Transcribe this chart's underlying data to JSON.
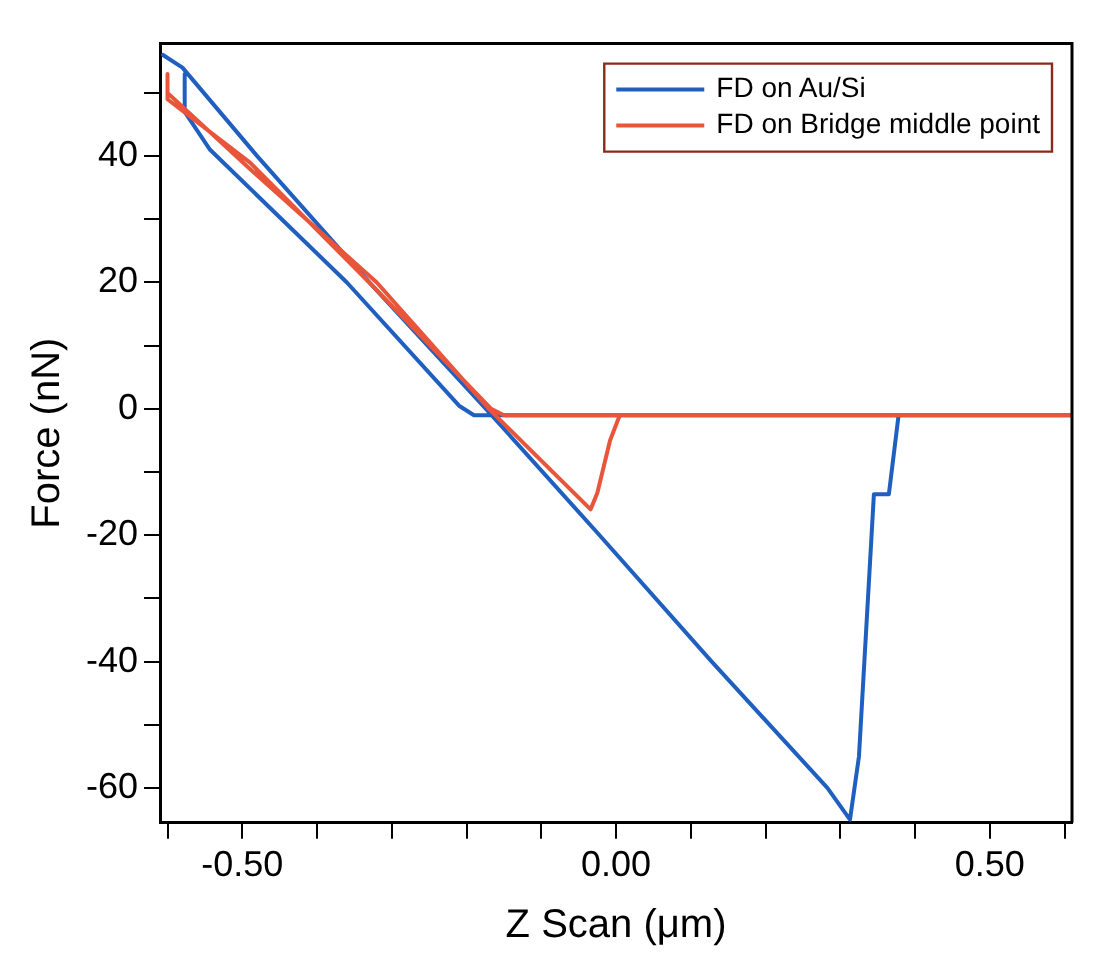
{
  "chart_data": {
    "type": "line",
    "xlabel": "Z Scan (μm)",
    "ylabel": "Force (nN)",
    "xlim": [
      -0.61,
      0.61
    ],
    "ylim": [
      -65.5,
      57.8
    ],
    "xticks": [
      {
        "value": -0.6,
        "label": null
      },
      {
        "value": -0.5,
        "label": "-0.50"
      },
      {
        "value": -0.4,
        "label": null
      },
      {
        "value": -0.3,
        "label": null
      },
      {
        "value": -0.2,
        "label": null
      },
      {
        "value": -0.1,
        "label": null
      },
      {
        "value": 0,
        "label": "0.00"
      },
      {
        "value": 0.1,
        "label": null
      },
      {
        "value": 0.2,
        "label": null
      },
      {
        "value": 0.3,
        "label": null
      },
      {
        "value": 0.4,
        "label": null
      },
      {
        "value": 0.5,
        "label": "0.50"
      },
      {
        "value": 0.6,
        "label": null
      }
    ],
    "yticks": [
      {
        "value": -60,
        "label": "-60"
      },
      {
        "value": -50,
        "label": null
      },
      {
        "value": -40,
        "label": "-40"
      },
      {
        "value": -30,
        "label": null
      },
      {
        "value": -20,
        "label": "-20"
      },
      {
        "value": -10,
        "label": null
      },
      {
        "value": 0,
        "label": "0"
      },
      {
        "value": 10,
        "label": null
      },
      {
        "value": 20,
        "label": "20"
      },
      {
        "value": 30,
        "label": null
      },
      {
        "value": 40,
        "label": "40"
      },
      {
        "value": 50,
        "label": null
      }
    ],
    "grid": false,
    "legend": "top right",
    "marker": "none",
    "line_style": "solid",
    "series": [
      {
        "name": "FD on Au/Si",
        "color": "#1f5fbf",
        "x": [
          -0.577,
          -0.577,
          -0.543,
          -0.36,
          -0.21,
          -0.19,
          0.61,
          0.378,
          0.365,
          0.345,
          0.325,
          0.313,
          0.283,
          0.128,
          -0.022,
          -0.174,
          -0.33,
          -0.48,
          -0.58,
          -0.606
        ],
        "values": [
          53,
          47,
          41,
          20,
          0.5,
          -1,
          -1,
          -1,
          -13.5,
          -13.5,
          -55,
          -65,
          -60,
          -40,
          -20,
          0,
          20,
          40,
          54,
          56
        ]
      },
      {
        "name": "FD on Bridge middle point",
        "color": "#e8553a",
        "x": [
          -0.6,
          -0.6,
          -0.49,
          -0.33,
          -0.167,
          -0.15,
          0.61,
          0.005,
          -0.008,
          -0.025,
          -0.034,
          -0.17,
          -0.32,
          -0.49,
          -0.6
        ],
        "values": [
          53,
          49,
          39,
          20,
          0,
          -1,
          -1,
          -1,
          -5,
          -13.3,
          -15.9,
          0,
          20,
          38,
          50
        ]
      }
    ]
  }
}
